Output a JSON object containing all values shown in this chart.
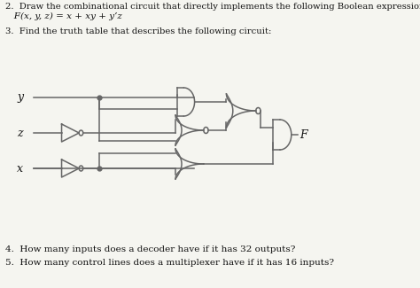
{
  "title_q2": "2.  Draw the combinational circuit that directly implements the following Boolean expression:",
  "formula_q2_a": "   F(x, y, z) = x + xy + y’z",
  "title_q3": "3.  Find the truth table that describes the following circuit:",
  "q4": "4.  How many inputs does a decoder have if it has 32 outputs?",
  "q5": "5.  How many control lines does a multiplexer have if it has 16 inputs?",
  "bg_color": "#f5f5f0",
  "line_color": "#666666",
  "text_color": "#111111",
  "gate_color": "#666666"
}
